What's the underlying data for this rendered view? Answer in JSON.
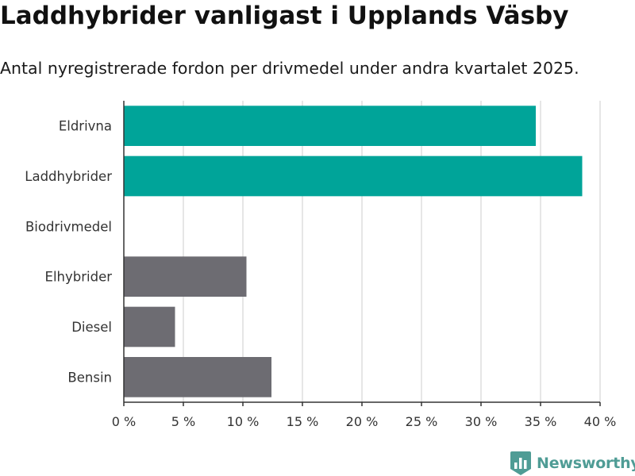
{
  "title": "Laddhybrider vanligast i Upplands Väsby",
  "subtitle": "Antal nyregistrerade fordon per drivmedel under andra kvartalet 2025.",
  "brand": {
    "name": "Newsworthy",
    "icon": "bar-chart-logo-icon",
    "color": "#4f9c95"
  },
  "chart_data": {
    "type": "bar",
    "orientation": "horizontal",
    "categories": [
      "Eldrivna",
      "Laddhybrider",
      "Biodrivmedel",
      "Elhybrider",
      "Diesel",
      "Bensin"
    ],
    "values": [
      34.6,
      38.5,
      0,
      10.3,
      4.3,
      12.4
    ],
    "colors": [
      "#00a499",
      "#00a499",
      "#6d6c72",
      "#6d6c72",
      "#6d6c72",
      "#6d6c72"
    ],
    "xlim": [
      0,
      40
    ],
    "xticks": [
      0,
      5,
      10,
      15,
      20,
      25,
      30,
      35,
      40
    ],
    "xtick_labels": [
      "0 %",
      "5 %",
      "10 %",
      "15 %",
      "20 %",
      "25 %",
      "30 %",
      "35 %",
      "40 %"
    ],
    "grid": true,
    "gridline_color": "#dddddd"
  }
}
